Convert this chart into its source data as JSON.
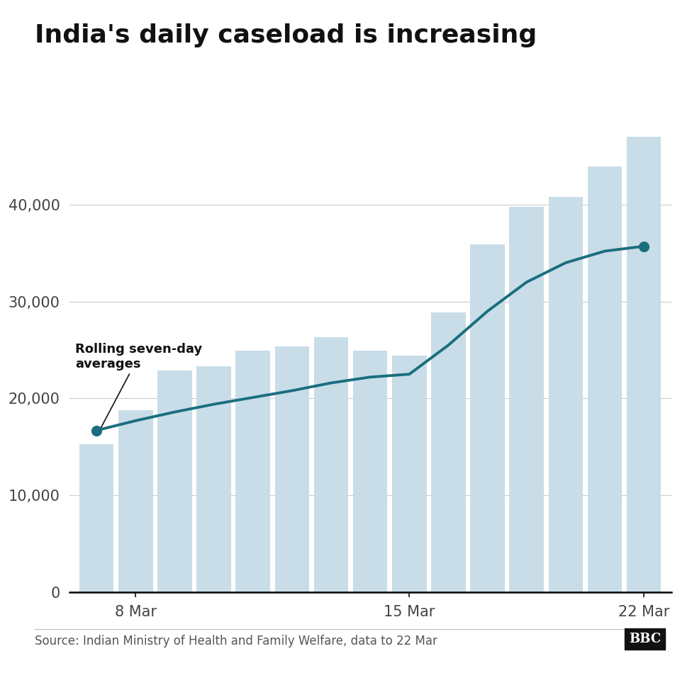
{
  "title": "India's daily caseload is increasing",
  "source_text": "Source: Indian Ministry of Health and Family Welfare, data to 22 Mar",
  "bbc_logo": "BBC",
  "bar_color": "#c8dde8",
  "line_color": "#1a6e7e",
  "background_color": "#ffffff",
  "annotation_text": "Rolling seven-day\naverages",
  "bar_values": [
    15300,
    18800,
    22900,
    23300,
    24900,
    25400,
    26300,
    24900,
    24400,
    28900,
    35900,
    39800,
    40800,
    43900,
    47000
  ],
  "line_values": [
    16700,
    17700,
    18600,
    19400,
    20100,
    20800,
    21600,
    22200,
    22500,
    25500,
    29000,
    32000,
    34000,
    35200,
    35700
  ],
  "x_positions": [
    0,
    1,
    2,
    3,
    4,
    5,
    6,
    7,
    8,
    9,
    10,
    11,
    12,
    13,
    14
  ],
  "x_tick_positions": [
    1,
    8,
    14
  ],
  "x_tick_labels": [
    "8 Mar",
    "15 Mar",
    "22 Mar"
  ],
  "y_ticks": [
    0,
    10000,
    20000,
    30000,
    40000
  ],
  "y_tick_labels": [
    "0",
    "10,000",
    "20,000",
    "30,000",
    "40,000"
  ],
  "ylim": [
    0,
    50000
  ],
  "title_fontsize": 26,
  "axis_fontsize": 15,
  "annotation_fontsize": 13,
  "source_fontsize": 12,
  "dot_first_idx": 0,
  "dot_last_idx": 14,
  "grid_color": "#cccccc",
  "axis_color": "#444444",
  "bar_width": 0.88
}
